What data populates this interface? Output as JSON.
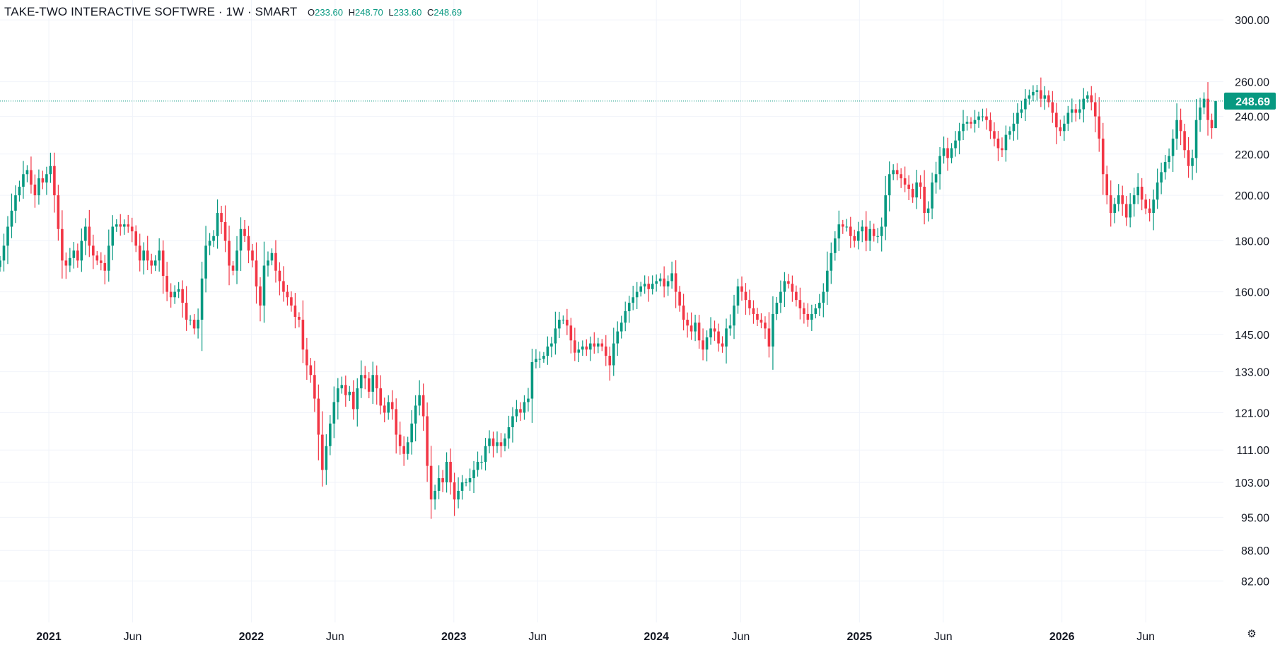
{
  "legend": {
    "title": "TAKE-TWO INTERACTIVE SOFTWRE · 1W · SMART",
    "open_label": "O",
    "open": "233.60",
    "high_label": "H",
    "high": "248.70",
    "low_label": "L",
    "low": "233.60",
    "close_label": "C",
    "close": "248.69"
  },
  "colors": {
    "up": "#089981",
    "down": "#f23645",
    "grid": "#f0f3fa",
    "text": "#131722"
  },
  "settings_icon": "gear-icon",
  "chart_data": {
    "type": "candlestick",
    "title": "TAKE-TWO INTERACTIVE SOFTWRE · 1W · SMART",
    "y_scale": "log",
    "ylim": [
      78,
      305
    ],
    "y_ticks": [
      82,
      88,
      95,
      103,
      111,
      121,
      133,
      145,
      160,
      180,
      200,
      220,
      240,
      260,
      300
    ],
    "y_tick_labels": [
      "82.00",
      "88.00",
      "95.00",
      "103.00",
      "111.00",
      "121.00",
      "133.00",
      "145.00",
      "160.00",
      "180.00",
      "200.00",
      "220.00",
      "240.00",
      "260.00",
      "300.00"
    ],
    "x_range": [
      "2020-10-05",
      "2026-10-19"
    ],
    "x_ticks": [
      {
        "date": "2021-01-01",
        "label": "2021",
        "year": true
      },
      {
        "date": "2021-06-01",
        "label": "Jun",
        "year": false
      },
      {
        "date": "2022-01-01",
        "label": "2022",
        "year": true
      },
      {
        "date": "2022-06-01",
        "label": "Jun",
        "year": false
      },
      {
        "date": "2023-01-01",
        "label": "2023",
        "year": true
      },
      {
        "date": "2023-06-01",
        "label": "Jun",
        "year": false
      },
      {
        "date": "2024-01-01",
        "label": "2024",
        "year": true
      },
      {
        "date": "2024-06-01",
        "label": "Jun",
        "year": false
      },
      {
        "date": "2025-01-01",
        "label": "2025",
        "year": true
      },
      {
        "date": "2025-06-01",
        "label": "Jun",
        "year": false
      },
      {
        "date": "2026-01-01",
        "label": "2026",
        "year": true
      },
      {
        "date": "2026-06-01",
        "label": "Jun",
        "year": false
      }
    ],
    "last_price": 248.69,
    "last_price_label": "248.69",
    "bars_start": "2020-10-05",
    "bars_interval": "1W",
    "closes": [
      172,
      178,
      186,
      193,
      200,
      204,
      210,
      212,
      205,
      200,
      208,
      206,
      210,
      214,
      200,
      185,
      172,
      170,
      173,
      176,
      172,
      180,
      186,
      178,
      174,
      172,
      171,
      168,
      178,
      186,
      187,
      186,
      187,
      186,
      184,
      178,
      172,
      176,
      172,
      170,
      172,
      176,
      166,
      160,
      158,
      160,
      161,
      156,
      150,
      150,
      147,
      150,
      165,
      178,
      180,
      182,
      192,
      188,
      180,
      170,
      168,
      176,
      185,
      182,
      176,
      172,
      162,
      155,
      170,
      172,
      175,
      168,
      164,
      160,
      158,
      155,
      151,
      150,
      140,
      135,
      132,
      125,
      115,
      106,
      112,
      118,
      124,
      128,
      129,
      126,
      127,
      122,
      128,
      132,
      131,
      127,
      132,
      128,
      123,
      121,
      124,
      122,
      115,
      112,
      110,
      113,
      118,
      123,
      126,
      120,
      107,
      99,
      101,
      104,
      103,
      108,
      103,
      99,
      101,
      103,
      103,
      104,
      106,
      108,
      108,
      112,
      114,
      112,
      113,
      112,
      114,
      117,
      120,
      122,
      121,
      124,
      125,
      136,
      137,
      137,
      138,
      141,
      142,
      147,
      150,
      150,
      148,
      143,
      139,
      140,
      141,
      140,
      142,
      141,
      142,
      141,
      138,
      135,
      142,
      146,
      149,
      153,
      156,
      158,
      160,
      162,
      163,
      161,
      163,
      164,
      165,
      162,
      164,
      167,
      160,
      155,
      150,
      148,
      146,
      149,
      143,
      140,
      144,
      147,
      146,
      142,
      141,
      147,
      148,
      155,
      162,
      160,
      157,
      154,
      152,
      150,
      149,
      147,
      141,
      152,
      156,
      160,
      164,
      163,
      160,
      157,
      154,
      152,
      150,
      152,
      154,
      156,
      160,
      168,
      175,
      181,
      187,
      186,
      186,
      182,
      180,
      184,
      186,
      180,
      185,
      182,
      182,
      186,
      200,
      210,
      212,
      210,
      208,
      205,
      203,
      199,
      206,
      204,
      192,
      194,
      206,
      210,
      219,
      223,
      218,
      223,
      227,
      232,
      236,
      237,
      236,
      238,
      240,
      240,
      238,
      232,
      228,
      223,
      222,
      230,
      232,
      236,
      242,
      244,
      250,
      252,
      254,
      255,
      250,
      252,
      248,
      242,
      234,
      232,
      236,
      242,
      244,
      242,
      244,
      250,
      252,
      248,
      240,
      228,
      210,
      200,
      192,
      196,
      200,
      196,
      190,
      196,
      200,
      204,
      198,
      194,
      192,
      198,
      206,
      211,
      216,
      219,
      228,
      238,
      232,
      222,
      214,
      218,
      238,
      245,
      250,
      238,
      233.6,
      248.69
    ]
  }
}
